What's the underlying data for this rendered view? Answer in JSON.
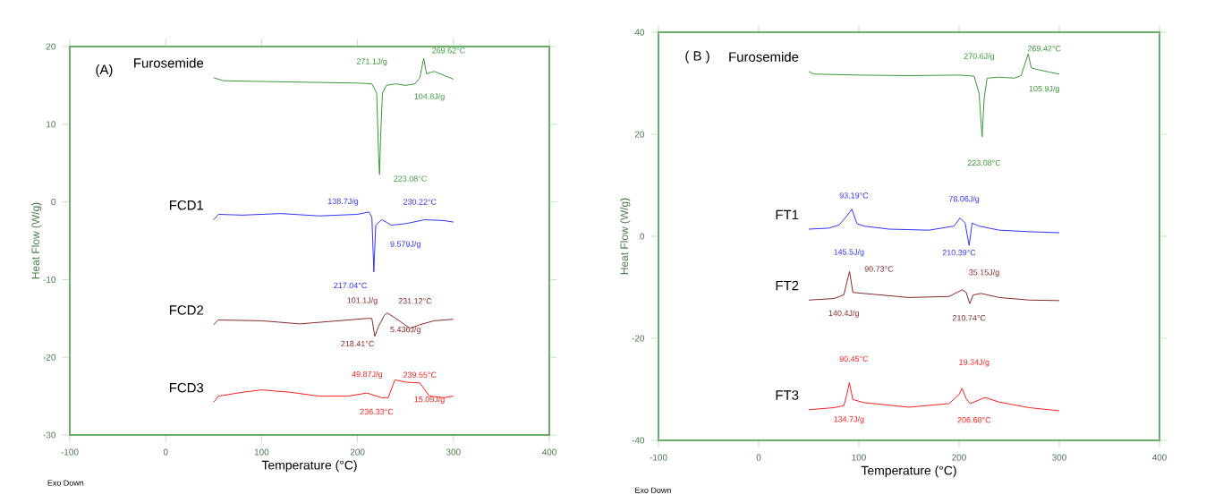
{
  "chart_data": [
    {
      "type": "line",
      "title": "(A)",
      "xlabel": "Temperature (°C)",
      "ylabel": "Heat Flow (W/g)",
      "xlim": [
        -100,
        400
      ],
      "xticks": [
        -100,
        0,
        100,
        200,
        300,
        400
      ],
      "ylim": [
        -30,
        20
      ],
      "yticks": [
        -30,
        -20,
        -10,
        0,
        10,
        20
      ],
      "legend": false,
      "marker": "none",
      "line_style": "solid",
      "grid": false,
      "series": [
        {
          "name": "Furosemide",
          "color": "#3a9a3a",
          "x": [
            50,
            60,
            100,
            150,
            200,
            215,
            220,
            222,
            223,
            224,
            226,
            230,
            240,
            250,
            260,
            265,
            269,
            272,
            280,
            290,
            300
          ],
          "values": [
            16.0,
            15.6,
            15.5,
            15.4,
            15.3,
            15.2,
            14,
            6,
            3.5,
            8,
            14,
            15.0,
            15.2,
            15.0,
            15.2,
            16,
            18.5,
            16.5,
            16.8,
            16.3,
            15.8
          ]
        },
        {
          "name": "FCD1",
          "color": "#3333ff",
          "x": [
            50,
            55,
            80,
            120,
            160,
            200,
            212,
            215,
            217,
            219,
            225,
            230,
            235,
            250,
            270,
            290,
            300
          ],
          "values": [
            -2.3,
            -1.6,
            -1.7,
            -1.5,
            -1.8,
            -1.6,
            -1.3,
            -2,
            -9,
            -3,
            -2.3,
            -2.6,
            -3.0,
            -2.8,
            -2.3,
            -2.4,
            -2.6
          ]
        },
        {
          "name": "FCD2",
          "color": "#8b2a2a",
          "x": [
            50,
            55,
            100,
            140,
            180,
            210,
            215,
            218,
            222,
            228,
            231,
            240,
            255,
            265,
            280,
            300
          ],
          "values": [
            -15.8,
            -15.2,
            -15.3,
            -15.7,
            -15.3,
            -15.0,
            -15.0,
            -17.3,
            -16,
            -14.6,
            -14.3,
            -15,
            -16.3,
            -15.8,
            -15.3,
            -15.1
          ]
        },
        {
          "name": "FCD3",
          "color": "#ff2020",
          "x": [
            50,
            55,
            80,
            100,
            130,
            160,
            190,
            210,
            225,
            232,
            239,
            250,
            265,
            275,
            290,
            300
          ],
          "values": [
            -25.8,
            -25.0,
            -24.5,
            -24.2,
            -24.5,
            -25,
            -25,
            -24.6,
            -25.2,
            -25.2,
            -22.9,
            -23.2,
            -23.3,
            -25.0,
            -25.2,
            -25.0
          ]
        }
      ],
      "annotations": [
        "271.1J/g",
        "269.62°C",
        "104.8J/g",
        "223.08°C",
        "138.7J/g",
        "230.22°C",
        "9.579J/g",
        "217.04°C",
        "101.1J/g",
        "231.12°C",
        "5.436J/g",
        "218.41°C",
        "49.87J/g",
        "239.55°C",
        "236.33°C",
        "15.09J/g",
        "Exo Down"
      ]
    },
    {
      "type": "line",
      "title": "( B )",
      "xlabel": "Temperature (°C)",
      "ylabel": "Heat Flow (W/g)",
      "xlim": [
        -100,
        400
      ],
      "xticks": [
        -100,
        0,
        100,
        200,
        300,
        400
      ],
      "ylim": [
        -40,
        40
      ],
      "yticks": [
        -40,
        -20,
        0,
        20,
        40
      ],
      "legend": false,
      "marker": "none",
      "line_style": "solid",
      "grid": false,
      "series": [
        {
          "name": "Furosemide",
          "color": "#3a9a3a",
          "x": [
            50,
            55,
            100,
            150,
            200,
            215,
            220,
            222,
            223,
            225,
            228,
            240,
            255,
            262,
            269,
            272,
            280,
            290,
            300
          ],
          "values": [
            32.3,
            31.8,
            31.6,
            31.5,
            31.6,
            31.4,
            28,
            22,
            19.5,
            27,
            31.0,
            31.2,
            31.0,
            31.5,
            35.8,
            33,
            32.6,
            32.2,
            31.8
          ]
        },
        {
          "name": "FT1",
          "color": "#3333ff",
          "x": [
            50,
            70,
            80,
            86,
            93,
            98,
            105,
            130,
            170,
            195,
            201,
            206,
            210,
            213,
            220,
            240,
            270,
            300
          ],
          "values": [
            1.4,
            1.6,
            2.2,
            3.5,
            5.3,
            2.5,
            2.0,
            1.4,
            1.2,
            2.0,
            3.6,
            2.6,
            -1.8,
            2.6,
            2.0,
            1.2,
            0.9,
            0.7
          ]
        },
        {
          "name": "FT2",
          "color": "#8b2a2a",
          "x": [
            50,
            75,
            85,
            88,
            90.7,
            94,
            105,
            150,
            190,
            203,
            207,
            210.7,
            214,
            222,
            240,
            270,
            300
          ],
          "values": [
            -12.5,
            -12.2,
            -11.5,
            -9,
            -6.9,
            -11.0,
            -11.2,
            -12,
            -11.8,
            -10.5,
            -11,
            -13.2,
            -11.5,
            -11.2,
            -12.0,
            -12.5,
            -12.6
          ]
        },
        {
          "name": "FT3",
          "color": "#ff2020",
          "x": [
            50,
            75,
            85,
            88,
            90.5,
            94,
            105,
            150,
            190,
            200,
            203,
            207,
            211,
            216,
            226,
            240,
            270,
            300
          ],
          "values": [
            -34.0,
            -33.6,
            -33.2,
            -31,
            -28.7,
            -32.0,
            -32.6,
            -33.5,
            -32.8,
            -31,
            -29.8,
            -31.8,
            -32.8,
            -32.4,
            -31.6,
            -32.5,
            -33.6,
            -34.2
          ]
        }
      ],
      "annotations": [
        "270.6J/g",
        "269.42°C",
        "105.9J/g",
        "223.08°C",
        "93.19°C",
        "145.5J/g",
        "78.06J/g",
        "210.39°C",
        "90.73°C",
        "140.4J/g",
        "35.15J/g",
        "210.74°C",
        "90.45°C",
        "134.7J/g",
        "19.34J/g",
        "206.68°C",
        "Exo Down"
      ]
    }
  ]
}
